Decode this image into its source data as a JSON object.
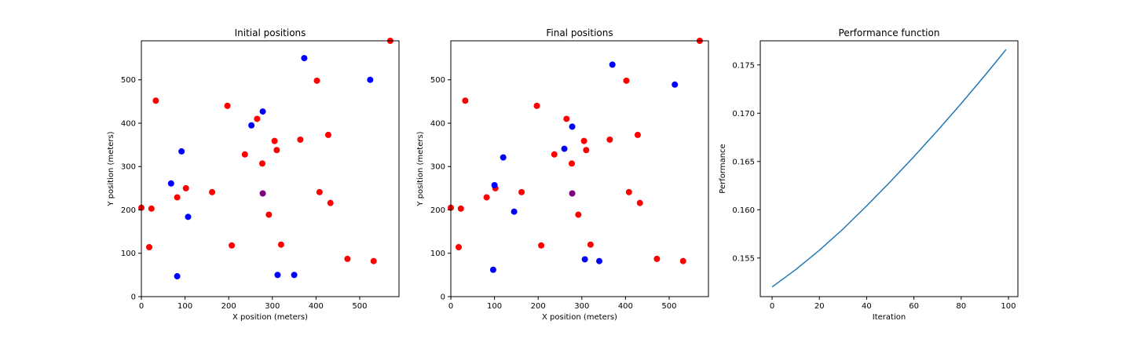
{
  "colors": {
    "red": "#ff0000",
    "blue": "#0000ff",
    "purple": "#800080",
    "line": "#1f77b4"
  },
  "chart_data": [
    {
      "type": "scatter",
      "title": "Initial positions",
      "xlabel": "X position (meters)",
      "ylabel": "Y position (meters)",
      "xlim": [
        0,
        590
      ],
      "ylim": [
        0,
        590
      ],
      "xticks": [
        0,
        100,
        200,
        300,
        400,
        500
      ],
      "yticks": [
        0,
        100,
        200,
        300,
        400,
        500
      ],
      "series": [
        {
          "color_key": "red",
          "points": [
            [
              0,
              205
            ],
            [
              23,
              203
            ],
            [
              18,
              114
            ],
            [
              33,
              452
            ],
            [
              82,
              229
            ],
            [
              102,
              250
            ],
            [
              162,
              241
            ],
            [
              197,
              440
            ],
            [
              207,
              118
            ],
            [
              237,
              328
            ],
            [
              265,
              410
            ],
            [
              277,
              307
            ],
            [
              292,
              189
            ],
            [
              305,
              359
            ],
            [
              310,
              338
            ],
            [
              320,
              120
            ],
            [
              364,
              362
            ],
            [
              402,
              498
            ],
            [
              408,
              241
            ],
            [
              428,
              373
            ],
            [
              433,
              216
            ],
            [
              472,
              87
            ],
            [
              532,
              82
            ],
            [
              570,
              590
            ]
          ]
        },
        {
          "color_key": "blue",
          "points": [
            [
              68,
              261
            ],
            [
              82,
              47
            ],
            [
              92,
              335
            ],
            [
              107,
              184
            ],
            [
              252,
              395
            ],
            [
              278,
              427
            ],
            [
              312,
              50
            ],
            [
              350,
              50
            ],
            [
              373,
              550
            ],
            [
              524,
              500
            ]
          ]
        },
        {
          "color_key": "purple",
          "points": [
            [
              278,
              238
            ]
          ]
        }
      ]
    },
    {
      "type": "scatter",
      "title": "Final positions",
      "xlabel": "X position (meters)",
      "ylabel": "Y position (meters)",
      "xlim": [
        0,
        590
      ],
      "ylim": [
        0,
        590
      ],
      "xticks": [
        0,
        100,
        200,
        300,
        400,
        500
      ],
      "yticks": [
        0,
        100,
        200,
        300,
        400,
        500
      ],
      "series": [
        {
          "color_key": "red",
          "points": [
            [
              0,
              205
            ],
            [
              23,
              203
            ],
            [
              18,
              114
            ],
            [
              33,
              452
            ],
            [
              82,
              229
            ],
            [
              102,
              250
            ],
            [
              162,
              241
            ],
            [
              197,
              440
            ],
            [
              207,
              118
            ],
            [
              237,
              328
            ],
            [
              265,
              410
            ],
            [
              277,
              307
            ],
            [
              292,
              189
            ],
            [
              305,
              359
            ],
            [
              310,
              338
            ],
            [
              320,
              120
            ],
            [
              364,
              362
            ],
            [
              402,
              498
            ],
            [
              408,
              241
            ],
            [
              428,
              373
            ],
            [
              433,
              216
            ],
            [
              472,
              87
            ],
            [
              532,
              82
            ],
            [
              570,
              590
            ]
          ]
        },
        {
          "color_key": "blue",
          "points": [
            [
              97,
              62
            ],
            [
              100,
              257
            ],
            [
              120,
              321
            ],
            [
              145,
              196
            ],
            [
              260,
              341
            ],
            [
              278,
              392
            ],
            [
              307,
              86
            ],
            [
              340,
              82
            ],
            [
              370,
              535
            ],
            [
              513,
              489
            ]
          ]
        },
        {
          "color_key": "purple",
          "points": [
            [
              278,
              238
            ]
          ]
        }
      ]
    },
    {
      "type": "line",
      "title": "Performance function",
      "xlabel": "Iteration",
      "ylabel": "Performance",
      "xlim": [
        -5,
        104
      ],
      "ylim": [
        0.151,
        0.1775
      ],
      "xticks": [
        0,
        20,
        40,
        60,
        80,
        100
      ],
      "yticks": [
        0.155,
        0.16,
        0.165,
        0.17,
        0.175
      ],
      "ytick_labels": [
        "0.155",
        "0.160",
        "0.165",
        "0.170",
        "0.175"
      ],
      "series": [
        {
          "color_key": "line",
          "x": [
            0,
            10,
            20,
            30,
            40,
            50,
            60,
            70,
            80,
            90,
            99
          ],
          "y": [
            0.152,
            0.1538,
            0.1558,
            0.158,
            0.1604,
            0.1629,
            0.1655,
            0.1682,
            0.171,
            0.1739,
            0.1766
          ]
        }
      ]
    }
  ]
}
